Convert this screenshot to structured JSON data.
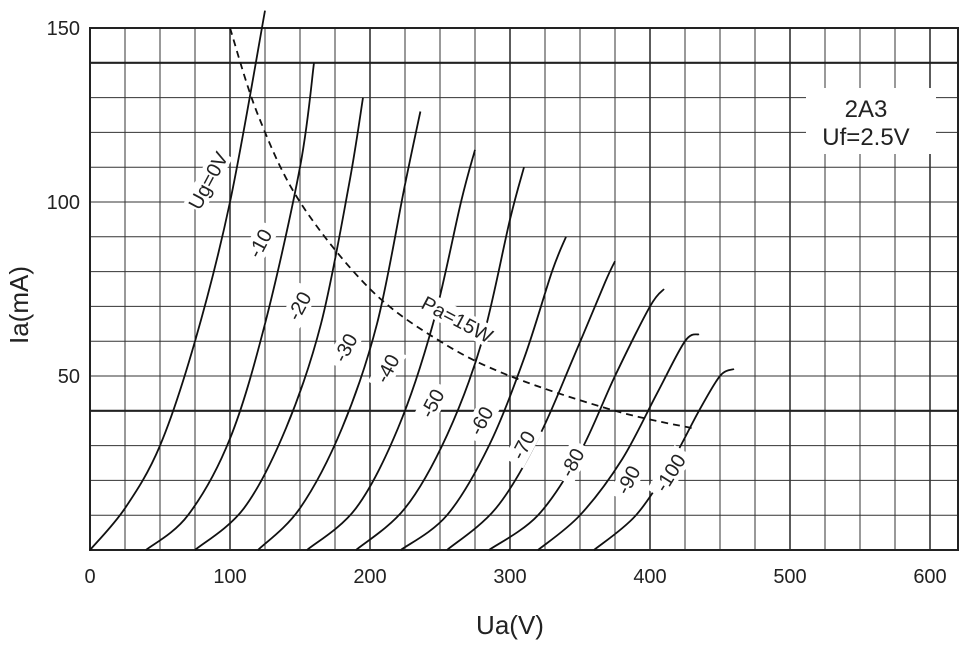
{
  "chart_data": {
    "type": "line",
    "title": "2A3",
    "subtitle": "Uf=2.5V",
    "xlabel": "Ua(V)",
    "ylabel": "Ia(mA)",
    "xlim": [
      0,
      620
    ],
    "ylim": [
      0,
      150
    ],
    "x_ticks": [
      "0",
      "100",
      "200",
      "300",
      "400",
      "500",
      "600"
    ],
    "y_ticks": [
      "50",
      "100",
      "150"
    ],
    "grid": true,
    "series": [
      {
        "name": "Ug=0V",
        "x": [
          0,
          25,
          50,
          75,
          100,
          125
        ],
        "y": [
          0,
          12,
          30,
          60,
          100,
          155
        ]
      },
      {
        "name": "-10",
        "x": [
          40,
          70,
          100,
          125,
          150,
          160
        ],
        "y": [
          0,
          10,
          32,
          65,
          110,
          140
        ]
      },
      {
        "name": "-20",
        "x": [
          75,
          110,
          140,
          165,
          185,
          195
        ],
        "y": [
          0,
          12,
          35,
          65,
          105,
          130
        ]
      },
      {
        "name": "-30",
        "x": [
          120,
          150,
          180,
          205,
          225,
          236
        ],
        "y": [
          0,
          12,
          35,
          65,
          105,
          126
        ]
      },
      {
        "name": "-40",
        "x": [
          155,
          190,
          220,
          245,
          265,
          275
        ],
        "y": [
          0,
          12,
          35,
          65,
          100,
          115
        ]
      },
      {
        "name": "-50",
        "x": [
          190,
          225,
          255,
          280,
          300,
          310
        ],
        "y": [
          0,
          12,
          33,
          60,
          95,
          110
        ]
      },
      {
        "name": "-60",
        "x": [
          222,
          255,
          285,
          310,
          330,
          340
        ],
        "y": [
          0,
          10,
          30,
          55,
          80,
          90
        ]
      },
      {
        "name": "-70",
        "x": [
          255,
          290,
          320,
          345,
          368,
          375
        ],
        "y": [
          0,
          12,
          32,
          55,
          77,
          83
        ]
      },
      {
        "name": "-80",
        "x": [
          285,
          320,
          350,
          375,
          400,
          410
        ],
        "y": [
          0,
          10,
          28,
          50,
          70,
          75
        ]
      },
      {
        "name": "-90",
        "x": [
          320,
          350,
          380,
          405,
          425,
          435
        ],
        "y": [
          0,
          10,
          26,
          45,
          60,
          62
        ]
      },
      {
        "name": "-100",
        "x": [
          360,
          390,
          415,
          435,
          450,
          460
        ],
        "y": [
          0,
          10,
          25,
          40,
          50,
          52
        ]
      }
    ],
    "annotations": [
      {
        "name": "Pa=15W",
        "x": [
          100,
          120,
          150,
          200,
          250,
          300,
          375,
          430
        ],
        "y": [
          150,
          125,
          100,
          75,
          60,
          50,
          40,
          35
        ]
      }
    ]
  }
}
